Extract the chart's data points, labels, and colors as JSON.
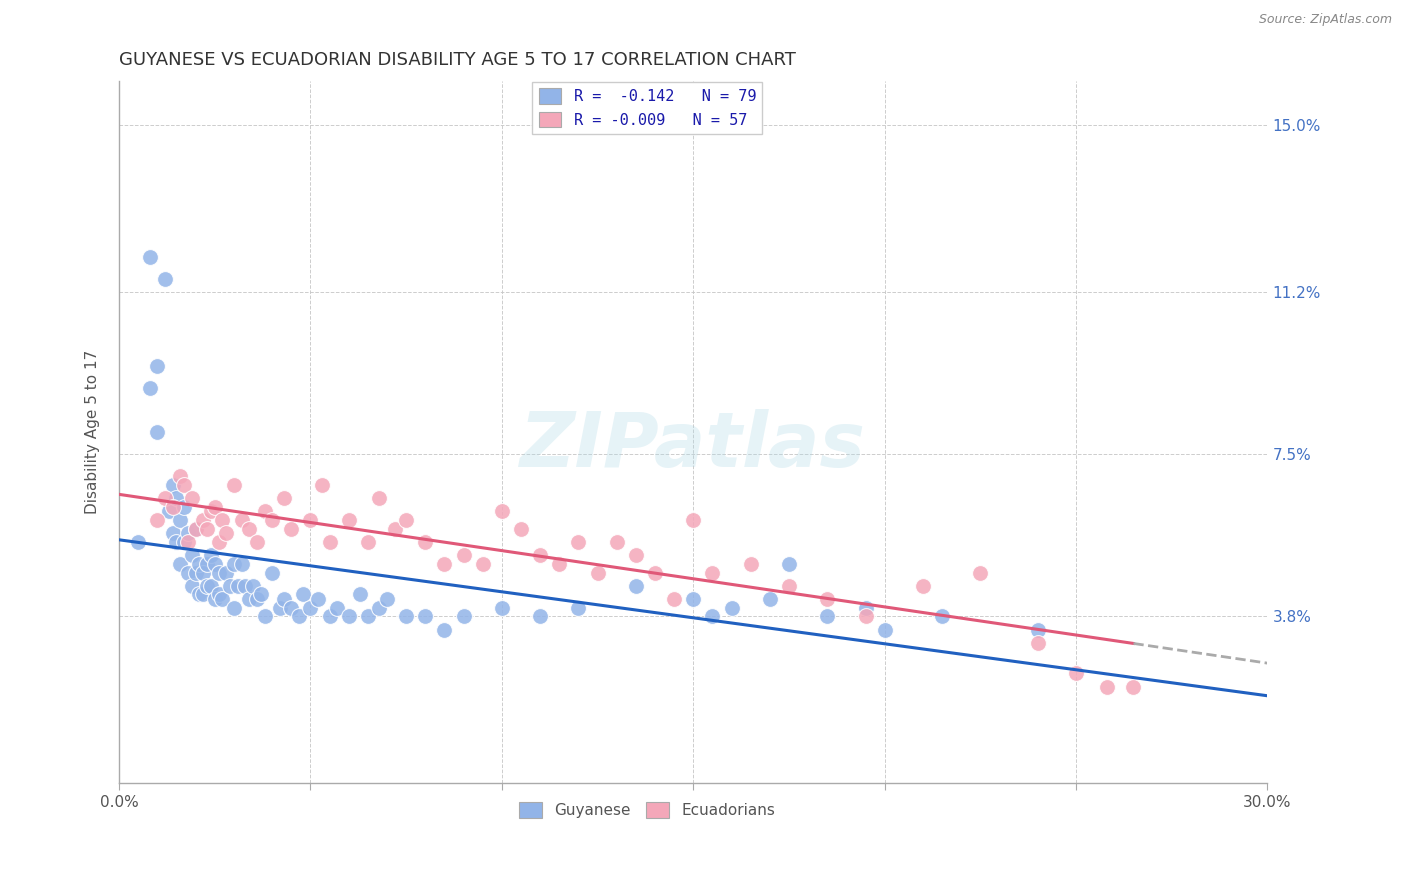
{
  "title": "GUYANESE VS ECUADORIAN DISABILITY AGE 5 TO 17 CORRELATION CHART",
  "source": "Source: ZipAtlas.com",
  "ylabel": "Disability Age 5 to 17",
  "xlim": [
    0.0,
    0.3
  ],
  "ylim": [
    0.0,
    0.16
  ],
  "ytick_labels": [
    "3.8%",
    "7.5%",
    "11.2%",
    "15.0%"
  ],
  "ytick_positions": [
    0.038,
    0.075,
    0.112,
    0.15
  ],
  "color_guyanese": "#92b4e8",
  "color_ecuadorian": "#f4a7b9",
  "line_color_guyanese": "#2060c0",
  "line_color_ecuadorian": "#e05878",
  "watermark": "ZIPatlas",
  "grid_color": "#c8c8c8",
  "guyanese_x": [
    0.005,
    0.008,
    0.008,
    0.01,
    0.01,
    0.012,
    0.013,
    0.014,
    0.014,
    0.015,
    0.015,
    0.016,
    0.016,
    0.017,
    0.017,
    0.018,
    0.018,
    0.019,
    0.019,
    0.02,
    0.02,
    0.021,
    0.021,
    0.022,
    0.022,
    0.023,
    0.023,
    0.024,
    0.024,
    0.025,
    0.025,
    0.026,
    0.026,
    0.027,
    0.028,
    0.029,
    0.03,
    0.03,
    0.031,
    0.032,
    0.033,
    0.034,
    0.035,
    0.036,
    0.037,
    0.038,
    0.04,
    0.042,
    0.043,
    0.045,
    0.047,
    0.048,
    0.05,
    0.052,
    0.055,
    0.057,
    0.06,
    0.063,
    0.065,
    0.068,
    0.07,
    0.075,
    0.08,
    0.085,
    0.09,
    0.1,
    0.11,
    0.12,
    0.135,
    0.15,
    0.155,
    0.16,
    0.17,
    0.175,
    0.185,
    0.195,
    0.2,
    0.215,
    0.24
  ],
  "guyanese_y": [
    0.055,
    0.09,
    0.12,
    0.08,
    0.095,
    0.115,
    0.062,
    0.068,
    0.057,
    0.065,
    0.055,
    0.06,
    0.05,
    0.063,
    0.055,
    0.048,
    0.057,
    0.052,
    0.045,
    0.058,
    0.048,
    0.05,
    0.043,
    0.048,
    0.043,
    0.05,
    0.045,
    0.052,
    0.045,
    0.05,
    0.042,
    0.048,
    0.043,
    0.042,
    0.048,
    0.045,
    0.04,
    0.05,
    0.045,
    0.05,
    0.045,
    0.042,
    0.045,
    0.042,
    0.043,
    0.038,
    0.048,
    0.04,
    0.042,
    0.04,
    0.038,
    0.043,
    0.04,
    0.042,
    0.038,
    0.04,
    0.038,
    0.043,
    0.038,
    0.04,
    0.042,
    0.038,
    0.038,
    0.035,
    0.038,
    0.04,
    0.038,
    0.04,
    0.045,
    0.042,
    0.038,
    0.04,
    0.042,
    0.05,
    0.038,
    0.04,
    0.035,
    0.038,
    0.035
  ],
  "ecuadorian_x": [
    0.01,
    0.012,
    0.014,
    0.016,
    0.017,
    0.018,
    0.019,
    0.02,
    0.022,
    0.023,
    0.024,
    0.025,
    0.026,
    0.027,
    0.028,
    0.03,
    0.032,
    0.034,
    0.036,
    0.038,
    0.04,
    0.043,
    0.045,
    0.05,
    0.053,
    0.055,
    0.06,
    0.065,
    0.068,
    0.072,
    0.075,
    0.08,
    0.085,
    0.09,
    0.095,
    0.1,
    0.105,
    0.11,
    0.115,
    0.12,
    0.125,
    0.13,
    0.135,
    0.14,
    0.145,
    0.15,
    0.155,
    0.165,
    0.175,
    0.185,
    0.195,
    0.21,
    0.225,
    0.24,
    0.25,
    0.258,
    0.265
  ],
  "ecuadorian_y": [
    0.06,
    0.065,
    0.063,
    0.07,
    0.068,
    0.055,
    0.065,
    0.058,
    0.06,
    0.058,
    0.062,
    0.063,
    0.055,
    0.06,
    0.057,
    0.068,
    0.06,
    0.058,
    0.055,
    0.062,
    0.06,
    0.065,
    0.058,
    0.06,
    0.068,
    0.055,
    0.06,
    0.055,
    0.065,
    0.058,
    0.06,
    0.055,
    0.05,
    0.052,
    0.05,
    0.062,
    0.058,
    0.052,
    0.05,
    0.055,
    0.048,
    0.055,
    0.052,
    0.048,
    0.042,
    0.06,
    0.048,
    0.05,
    0.045,
    0.042,
    0.038,
    0.045,
    0.048,
    0.032,
    0.025,
    0.022,
    0.022
  ],
  "background_color": "#ffffff"
}
